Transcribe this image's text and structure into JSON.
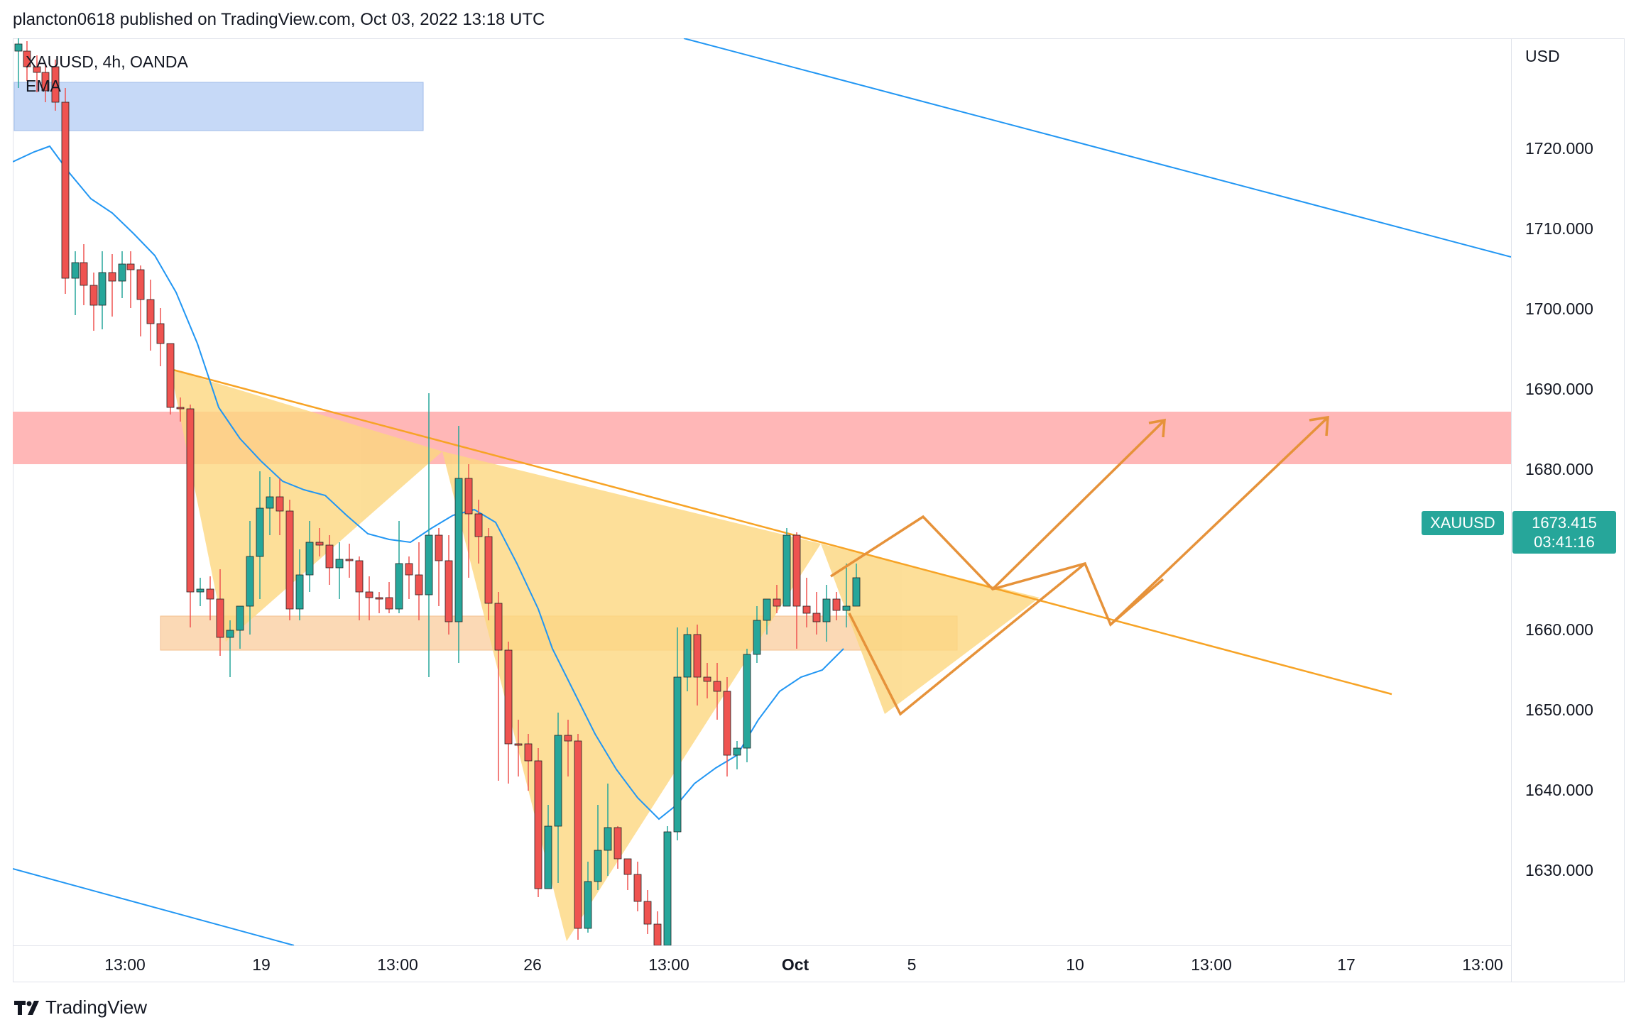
{
  "header": {
    "published_line": "plancton0618 published on TradingView.com, Oct 03, 2022 13:18 UTC"
  },
  "legend": {
    "symbol_line": "XAUUSD, 4h, OANDA",
    "indicator": "EMA"
  },
  "price_axis": {
    "currency": "USD",
    "ticks": [
      "1720.000",
      "1710.000",
      "1700.000",
      "1690.000",
      "1680.000",
      "1660.000",
      "1650.000",
      "1640.000",
      "1630.000"
    ]
  },
  "time_axis": {
    "ticks": [
      "13:00",
      "19",
      "13:00",
      "26",
      "13:00",
      "Oct",
      "5",
      "10",
      "13:00",
      "17",
      "13:00"
    ]
  },
  "last_price": {
    "symbol": "XAUUSD",
    "value": "1673.415",
    "countdown": "03:41:16",
    "color": "#26a69a"
  },
  "footer": {
    "brand": "TradingView"
  },
  "colors": {
    "up_candle": "#26a69a",
    "down_candle": "#ef5350",
    "ema_line": "#2196f3",
    "resistance_zone": "#ffb3b3",
    "demand_zone": "#fbd9b5",
    "supply_zone_blue": "#c6d9f7",
    "pattern_fill": "#fcd77f",
    "projection": "#e6923a"
  }
}
